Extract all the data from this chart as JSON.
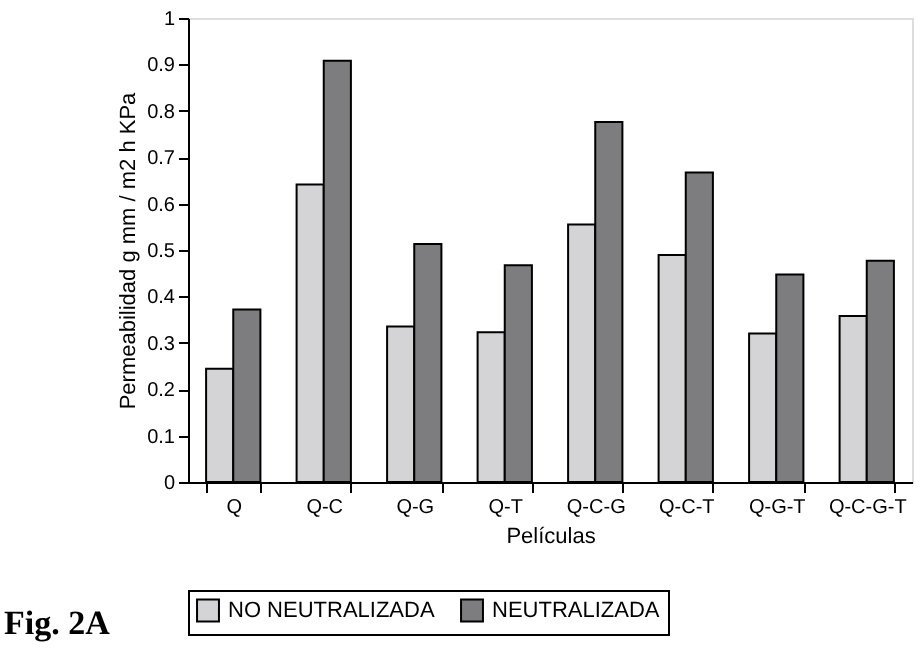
{
  "chart_data": {
    "type": "bar",
    "xlabel": "Películas",
    "ylabel": "Permeabilidad g mm / m2 h KPa",
    "categories": [
      "Q",
      "Q-C",
      "Q-G",
      "Q-T",
      "Q-C-G",
      "Q-C-T",
      "Q-G-T",
      "Q-C-G-T"
    ],
    "series": [
      {
        "name": "NO NEUTRALIZADA",
        "color": "#d4d4d6",
        "values": [
          0.244,
          0.641,
          0.335,
          0.323,
          0.555,
          0.489,
          0.32,
          0.358
        ]
      },
      {
        "name": "NEUTRALIZADA",
        "color": "#7d7d80",
        "values": [
          0.372,
          0.908,
          0.513,
          0.467,
          0.776,
          0.667,
          0.447,
          0.477
        ]
      }
    ],
    "ylim": [
      0,
      1
    ],
    "yticks": [
      0,
      0.1,
      0.2,
      0.3,
      0.4,
      0.5,
      0.6,
      0.7,
      0.8,
      0.9,
      1
    ],
    "grid": false,
    "legend": "bottom",
    "annotations": [
      "Fig. 2A"
    ]
  }
}
